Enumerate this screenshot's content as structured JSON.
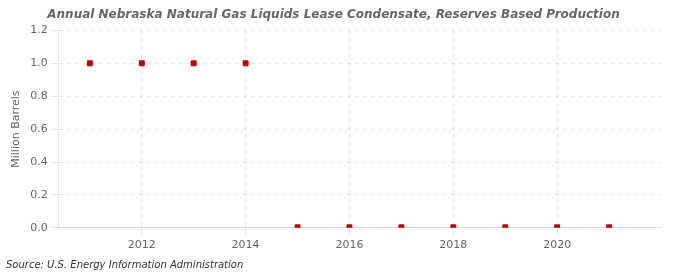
{
  "chart_data": {
    "type": "scatter",
    "title": "Annual Nebraska Natural Gas Liquids Lease Condensate, Reserves Based Production",
    "ylabel": "Million Barrels",
    "annotations": [
      "Source: U.S. Energy Information Administration"
    ],
    "x": [
      2011,
      2012,
      2013,
      2014,
      2015,
      2016,
      2017,
      2018,
      2019,
      2020,
      2021
    ],
    "values": [
      1.0,
      1.0,
      1.0,
      1.0,
      0.003,
      0.003,
      0.003,
      0.003,
      0.003,
      0.003,
      0.003
    ],
    "color": "#bb0000",
    "marker": "square",
    "xlim": [
      2010.4,
      2022.0
    ],
    "xticks": [
      2012,
      2014,
      2016,
      2018,
      2020
    ],
    "ylim": [
      0.0,
      1.2
    ],
    "yticks": [
      {
        "value": 0.0,
        "label": "0.0"
      },
      0.2,
      0.4,
      0.6,
      0.8,
      {
        "value": 1.0,
        "label": "1.0"
      },
      1.2
    ],
    "grid": true
  }
}
